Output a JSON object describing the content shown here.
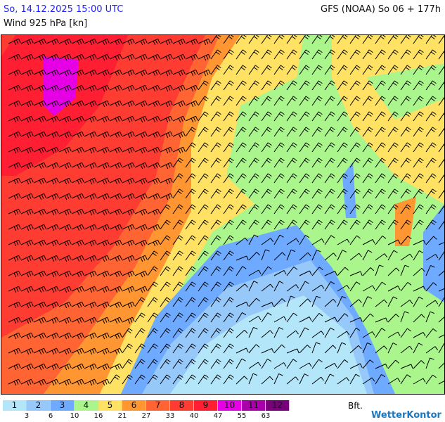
{
  "header": {
    "date": "So, 14.12.2025 15:00 UTC",
    "model": "GFS (NOAA) So 06 + 177h",
    "parameter": "Wind 925 hPa [kn]"
  },
  "legend": {
    "unit": "Bft.",
    "classes": [
      {
        "label": "1",
        "color": "#b4e6fa"
      },
      {
        "label": "2",
        "color": "#96c8fa"
      },
      {
        "label": "3",
        "color": "#6eaaff"
      },
      {
        "label": "4",
        "color": "#aaf58c"
      },
      {
        "label": "5",
        "color": "#ffe164"
      },
      {
        "label": "6",
        "color": "#ff9632"
      },
      {
        "label": "7",
        "color": "#ff6432"
      },
      {
        "label": "8",
        "color": "#ff3c32"
      },
      {
        "label": "9",
        "color": "#ff1e32"
      },
      {
        "label": "10",
        "color": "#e600e6"
      },
      {
        "label": "11",
        "color": "#aa00aa"
      },
      {
        "label": "12",
        "color": "#780078"
      }
    ],
    "ticks": [
      "3",
      "6",
      "10",
      "16",
      "21",
      "27",
      "33",
      "40",
      "47",
      "55",
      "63"
    ]
  },
  "logo": "WetterKontor"
}
